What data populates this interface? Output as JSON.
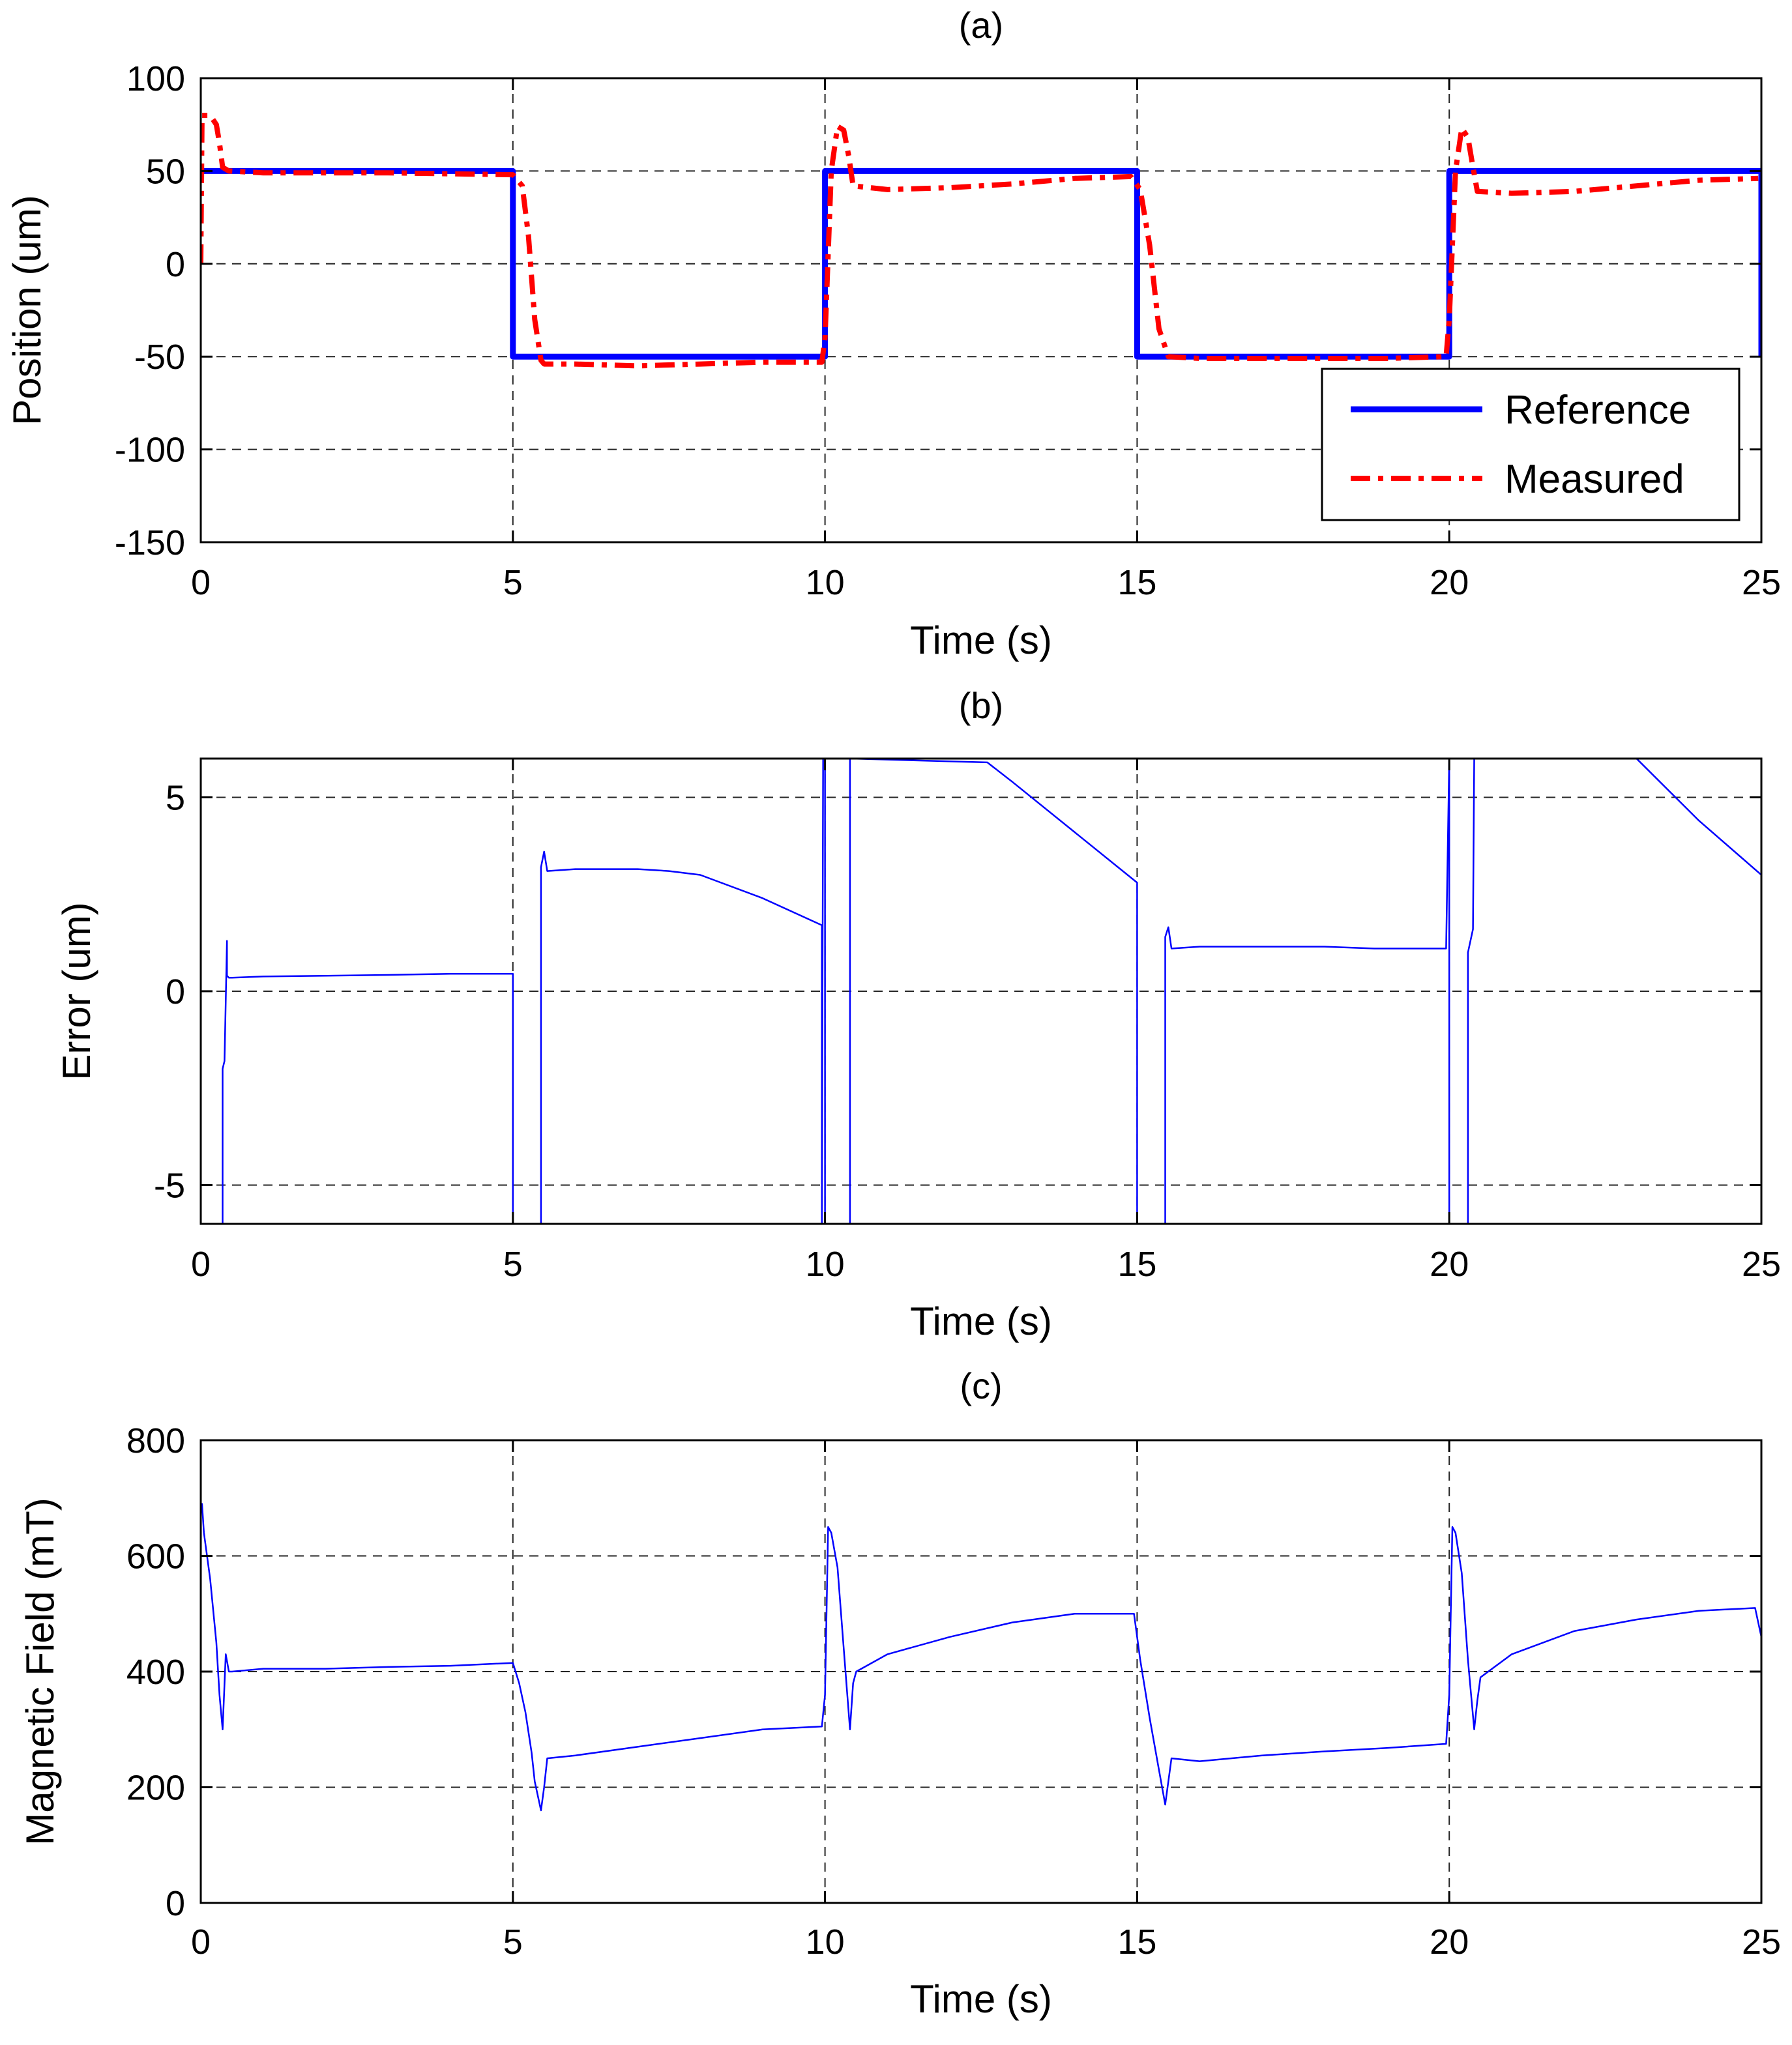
{
  "chart_data": [
    {
      "type": "line",
      "title": "(a)",
      "xlabel": "Time (s)",
      "ylabel": "Position (um)",
      "xlim": [
        0,
        25
      ],
      "ylim": [
        -150,
        100
      ],
      "xticks": [
        0,
        5,
        10,
        15,
        20,
        25
      ],
      "yticks": [
        100,
        50,
        0,
        -50,
        -100,
        -150
      ],
      "xtick_labels": [
        "0",
        "5",
        "10",
        "15",
        "20",
        "25"
      ],
      "ytick_labels": [
        "100",
        "50",
        "0",
        "-50",
        "-100",
        "-150"
      ],
      "grid": true,
      "legend": {
        "position": "lower-right",
        "entries": [
          "Reference",
          "Measured"
        ]
      },
      "series": [
        {
          "name": "Reference",
          "color": "#0000ff",
          "style": "solid",
          "x": [
            0,
            5,
            5,
            10,
            10,
            15,
            15,
            20,
            20,
            25,
            25
          ],
          "y": [
            50,
            50,
            -50,
            -50,
            50,
            50,
            -50,
            -50,
            50,
            50,
            -50
          ]
        },
        {
          "name": "Measured",
          "color": "#ff0000",
          "style": "dash-dot",
          "x": [
            0,
            0.02,
            0.05,
            0.15,
            0.25,
            0.3,
            0.35,
            0.45,
            1,
            3,
            5,
            5.15,
            5.25,
            5.35,
            5.45,
            5.5,
            6,
            7,
            8,
            9,
            9.95,
            10.0,
            10.1,
            10.2,
            10.3,
            10.38,
            10.45,
            11,
            12,
            13,
            14,
            14.9,
            15.05,
            15.2,
            15.35,
            15.5,
            16,
            17,
            18,
            19,
            19.95,
            20.0,
            20.1,
            20.2,
            20.3,
            20.38,
            20.45,
            21,
            22,
            23,
            24,
            24.95
          ],
          "y": [
            0,
            80,
            80,
            80,
            75,
            65,
            52,
            50,
            49,
            49,
            48,
            42,
            15,
            -30,
            -52,
            -54,
            -54,
            -55,
            -54,
            -53,
            -53,
            -40,
            50,
            74,
            72,
            58,
            42,
            40,
            41,
            43,
            46,
            47,
            40,
            10,
            -35,
            -50,
            -51,
            -51,
            -51,
            -51,
            -50,
            -30,
            50,
            73,
            68,
            52,
            39,
            38,
            39,
            42,
            45,
            46
          ]
        }
      ]
    },
    {
      "type": "line",
      "title": "(b)",
      "xlabel": "Time (s)",
      "ylabel": "Error (um)",
      "xlim": [
        0,
        25
      ],
      "ylim": [
        -6,
        6
      ],
      "xticks": [
        0,
        5,
        10,
        15,
        20,
        25
      ],
      "yticks": [
        5,
        0,
        -5
      ],
      "xtick_labels": [
        "0",
        "5",
        "10",
        "15",
        "20",
        "25"
      ],
      "ytick_labels": [
        "5",
        "0",
        "-5"
      ],
      "grid": true,
      "series": [
        {
          "name": "Error",
          "color": "#0000ff",
          "style": "solid",
          "x": [
            0.35,
            0.35,
            0.38,
            0.42,
            0.42,
            0.45,
            0.5,
            1,
            2,
            3,
            4,
            5,
            5,
            5.45,
            5.45,
            5.5,
            5.55,
            6,
            7,
            7.5,
            8,
            9,
            9.95,
            9.95,
            9.97,
            10.0,
            10.0,
            10.4,
            10.4,
            10.42,
            12.6,
            13,
            14,
            15,
            15,
            15.45,
            15.45,
            15.5,
            15.55,
            16,
            17,
            18,
            18.8,
            19,
            19.95,
            20.0,
            20.0,
            20.3,
            20.3,
            20.38,
            20.4,
            21,
            22,
            23,
            24,
            25,
            25
          ],
          "y": [
            -6,
            -2,
            -1.8,
            1.3,
            0.4,
            0.35,
            0.35,
            0.38,
            0.4,
            0.42,
            0.45,
            0.45,
            -6,
            -6,
            3.2,
            3.6,
            3.1,
            3.15,
            3.15,
            3.1,
            3.0,
            2.4,
            1.7,
            -6,
            6,
            6,
            -6,
            -6,
            6,
            6,
            5.9,
            5.4,
            4.1,
            2.8,
            -6,
            -6,
            1.4,
            1.65,
            1.1,
            1.15,
            1.15,
            1.15,
            1.1,
            1.1,
            1.1,
            6,
            -6,
            -6,
            1.0,
            1.6,
            6,
            6,
            6,
            6,
            4.4,
            3.0,
            -6
          ]
        }
      ]
    },
    {
      "type": "line",
      "title": "(c)",
      "xlabel": "Time (s)",
      "ylabel": "Magnetic Field (mT)",
      "xlim": [
        0,
        25
      ],
      "ylim": [
        0,
        800
      ],
      "xticks": [
        0,
        5,
        10,
        15,
        20,
        25
      ],
      "yticks": [
        800,
        600,
        400,
        200,
        0
      ],
      "xtick_labels": [
        "0",
        "5",
        "10",
        "15",
        "20",
        "25"
      ],
      "ytick_labels": [
        "800",
        "600",
        "400",
        "200",
        "0"
      ],
      "grid": true,
      "series": [
        {
          "name": "Magnetic Field",
          "color": "#0000ff",
          "style": "solid",
          "x": [
            0,
            0.02,
            0.05,
            0.1,
            0.15,
            0.25,
            0.3,
            0.35,
            0.4,
            0.45,
            0.5,
            1,
            2,
            3,
            4,
            5,
            5.1,
            5.2,
            5.3,
            5.35,
            5.45,
            5.5,
            5.55,
            6,
            7,
            8,
            9,
            9.95,
            10.0,
            10.05,
            10.1,
            10.2,
            10.3,
            10.4,
            10.45,
            10.5,
            11,
            12,
            13,
            14,
            14.95,
            15.05,
            15.2,
            15.35,
            15.45,
            15.5,
            15.55,
            16,
            17,
            18,
            19,
            19.95,
            20.0,
            20.05,
            20.1,
            20.2,
            20.3,
            20.4,
            20.45,
            20.5,
            21,
            22,
            23,
            24,
            24.9,
            25
          ],
          "y": [
            690,
            690,
            640,
            600,
            560,
            450,
            360,
            300,
            430,
            400,
            400,
            405,
            405,
            408,
            410,
            415,
            380,
            330,
            260,
            210,
            160,
            200,
            250,
            255,
            270,
            285,
            300,
            305,
            360,
            650,
            640,
            580,
            440,
            300,
            380,
            400,
            430,
            460,
            485,
            500,
            500,
            420,
            320,
            230,
            170,
            210,
            250,
            245,
            255,
            262,
            268,
            275,
            360,
            650,
            640,
            570,
            420,
            300,
            350,
            390,
            430,
            470,
            490,
            505,
            510,
            460
          ]
        }
      ]
    }
  ]
}
